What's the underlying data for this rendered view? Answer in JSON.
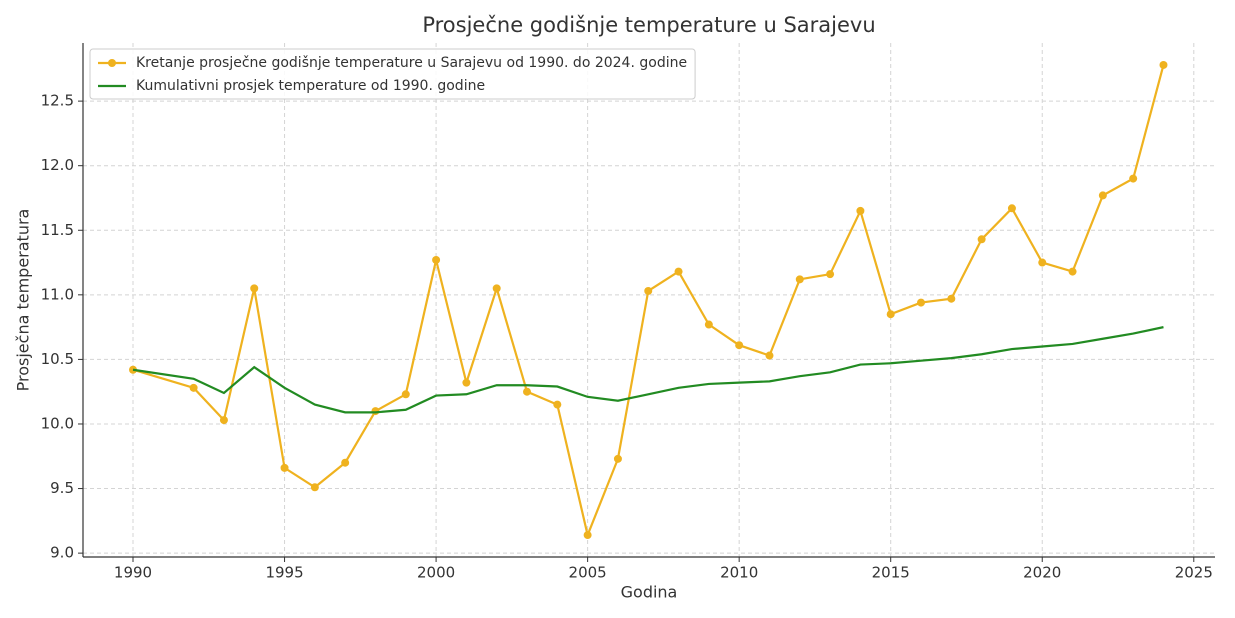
{
  "chart_data": {
    "type": "line",
    "title": "Prosječne godišnje temperature u Sarajevu",
    "xlabel": "Godina",
    "ylabel": "Prosječna temperatura",
    "x": [
      1990,
      1992,
      1993,
      1994,
      1995,
      1996,
      1997,
      1998,
      1999,
      2000,
      2001,
      2002,
      2003,
      2004,
      2005,
      2006,
      2007,
      2008,
      2009,
      2010,
      2011,
      2012,
      2013,
      2014,
      2015,
      2016,
      2017,
      2018,
      2019,
      2020,
      2021,
      2022,
      2023,
      2024
    ],
    "series": [
      {
        "name": "Kretanje prosječne godišnje temperature u Sarajevu od 1990. do 2024. godine",
        "color": "#efb21f",
        "marker": true,
        "values": [
          10.42,
          10.28,
          10.03,
          11.05,
          9.66,
          9.51,
          9.7,
          10.1,
          10.23,
          11.27,
          10.32,
          11.05,
          10.25,
          10.15,
          9.14,
          9.73,
          11.03,
          11.18,
          10.77,
          10.61,
          10.53,
          11.12,
          11.16,
          11.65,
          10.85,
          10.94,
          10.97,
          11.43,
          11.67,
          11.25,
          11.18,
          11.77,
          11.9,
          12.78
        ]
      },
      {
        "name": "Kumulativni prosjek temperature od 1990. godine",
        "color": "#228b22",
        "marker": false,
        "values": [
          10.42,
          10.35,
          10.24,
          10.44,
          10.28,
          10.15,
          10.09,
          10.09,
          10.11,
          10.22,
          10.23,
          10.3,
          10.3,
          10.29,
          10.21,
          10.18,
          10.23,
          10.28,
          10.31,
          10.32,
          10.33,
          10.37,
          10.4,
          10.46,
          10.47,
          10.49,
          10.51,
          10.54,
          10.58,
          10.6,
          10.62,
          10.66,
          10.7,
          10.75
        ]
      }
    ],
    "xlim": [
      1988.35,
      2025.7
    ],
    "ylim": [
      8.97,
      12.95
    ],
    "xticks": [
      1990,
      1995,
      2000,
      2005,
      2010,
      2015,
      2020,
      2025
    ],
    "yticks": [
      {
        "value": 9,
        "label": "9.0"
      },
      9.5,
      {
        "value": 10,
        "label": "10.0"
      },
      10.5,
      {
        "value": 11,
        "label": "11.0"
      },
      11.5,
      {
        "value": 12,
        "label": "12.0"
      },
      12.5
    ],
    "grid": true,
    "legend": "upper left"
  }
}
